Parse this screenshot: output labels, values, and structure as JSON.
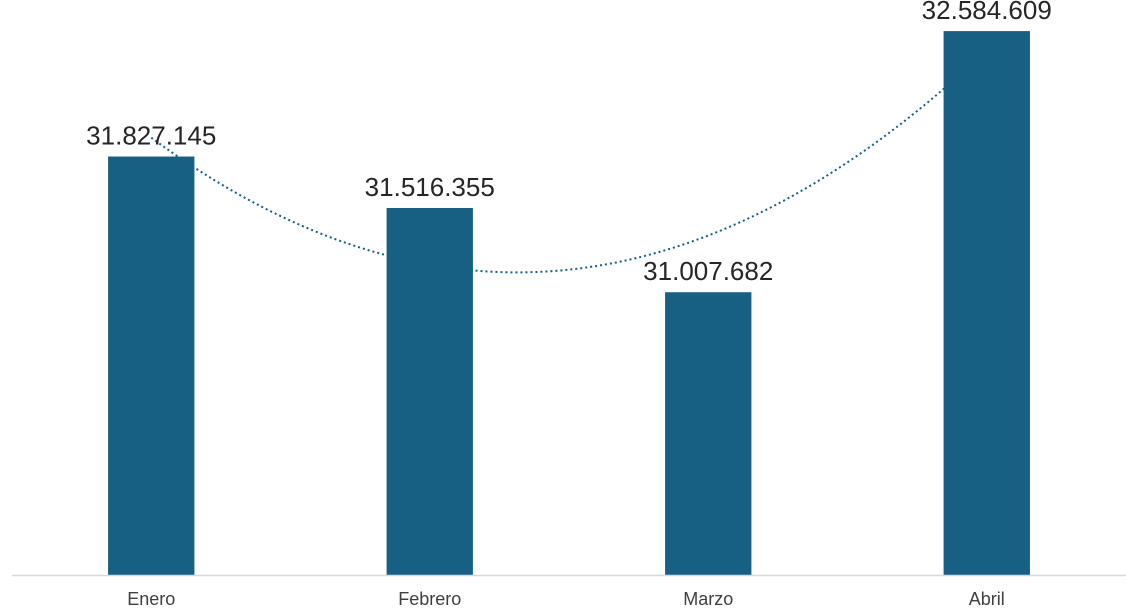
{
  "chart_data": {
    "type": "bar",
    "categories": [
      "Enero",
      "Febrero",
      "Marzo",
      "Abril"
    ],
    "values": [
      31827145,
      31516355,
      31007682,
      32584609
    ],
    "value_labels": [
      "31.827.145",
      "31.516.355",
      "31.007.682",
      "32.584.609"
    ],
    "title": "",
    "xlabel": "",
    "ylabel": "",
    "ylim": [
      29300000,
      32700000
    ],
    "trendline": {
      "type": "polynomial",
      "order": 2,
      "style": "dotted"
    },
    "grid": false,
    "legend": "none",
    "colors": {
      "bar": "#176083",
      "trendline": "#176083",
      "axis": "#d9d9d9"
    }
  }
}
